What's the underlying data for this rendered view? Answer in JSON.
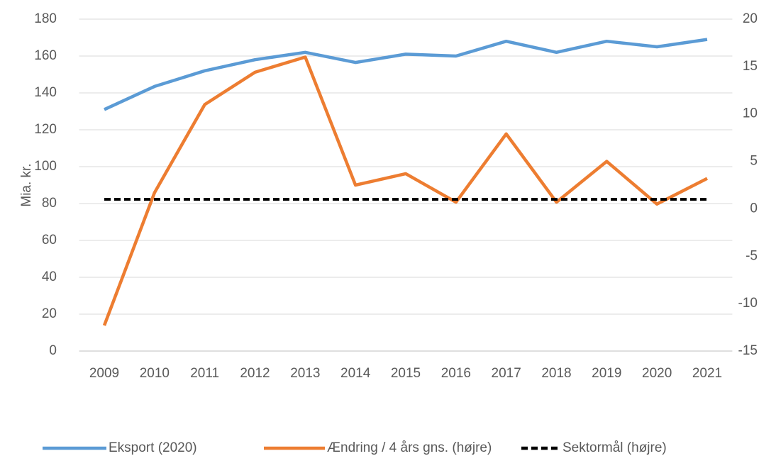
{
  "chart_data": {
    "type": "line",
    "ylabel": "Mia. kr.",
    "categories": [
      "2009",
      "2010",
      "2011",
      "2012",
      "2013",
      "2014",
      "2015",
      "2016",
      "2017",
      "2018",
      "2019",
      "2020",
      "2021"
    ],
    "series": [
      {
        "name": "Eksport (2020)",
        "color": "#5b9bd5",
        "axis": "y",
        "values": [
          131,
          143.5,
          152,
          158,
          162,
          156.5,
          161,
          160,
          168,
          162,
          168,
          165,
          169
        ]
      },
      {
        "name": "Ændring / 4 års gns. (højre)",
        "color": "#ed7d31",
        "axis": "y2",
        "values": [
          -12.3,
          1.7,
          11,
          14.4,
          16,
          2.5,
          3.7,
          0.7,
          7.9,
          0.7,
          5,
          0.5,
          3.2
        ]
      },
      {
        "name": "Sektormål (højre)",
        "color": "#000000",
        "axis": "y2",
        "dashed": true,
        "values": [
          1,
          1,
          1,
          1,
          1,
          1,
          1,
          1,
          1,
          1,
          1,
          1,
          1
        ]
      }
    ],
    "ylim": [
      0,
      180
    ],
    "yticks": [
      0,
      20,
      40,
      60,
      80,
      100,
      120,
      140,
      160,
      180
    ],
    "y2lim": [
      -15,
      20
    ],
    "y2ticks": [
      -15,
      -10,
      -5,
      0,
      5,
      10,
      15,
      20
    ],
    "grid": true,
    "legend": "bottom"
  }
}
